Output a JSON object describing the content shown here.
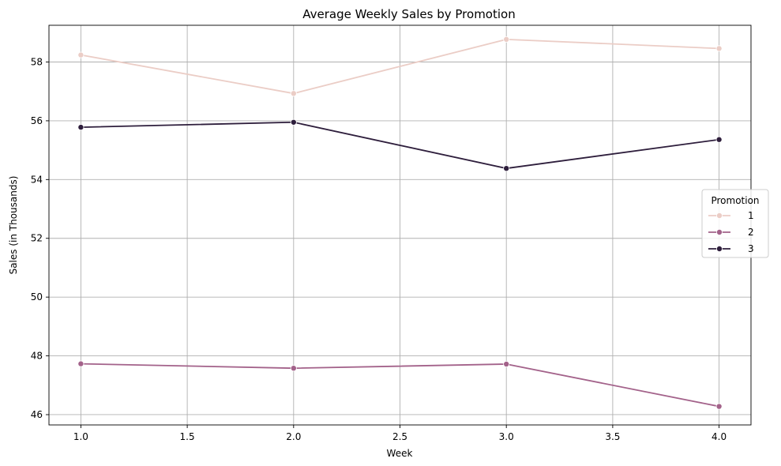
{
  "chart_data": {
    "type": "line",
    "title": "Average Weekly Sales by Promotion",
    "xlabel": "Week",
    "ylabel": "Sales (in Thousands)",
    "xlim": [
      0.85,
      4.15
    ],
    "ylim": [
      45.65,
      59.25
    ],
    "xticks": [
      1.0,
      1.5,
      2.0,
      2.5,
      3.0,
      3.5,
      4.0
    ],
    "xtick_labels": [
      "1.0",
      "1.5",
      "2.0",
      "2.5",
      "3.0",
      "3.5",
      "4.0"
    ],
    "yticks": [
      46,
      48,
      50,
      52,
      54,
      56,
      58
    ],
    "ytick_labels": [
      "46",
      "48",
      "50",
      "52",
      "54",
      "56",
      "58"
    ],
    "grid": true,
    "legend": {
      "title": "Promotion",
      "placement": "center-right"
    },
    "x": [
      1,
      2,
      3,
      4
    ],
    "series": [
      {
        "name": "1",
        "color": "#ebcdc6",
        "values": [
          58.24,
          56.93,
          58.77,
          58.46
        ]
      },
      {
        "name": "2",
        "color": "#a3628a",
        "values": [
          47.73,
          47.58,
          47.72,
          46.28
        ]
      },
      {
        "name": "3",
        "color": "#2e1e3c",
        "values": [
          55.78,
          55.95,
          54.38,
          55.36
        ]
      }
    ]
  }
}
